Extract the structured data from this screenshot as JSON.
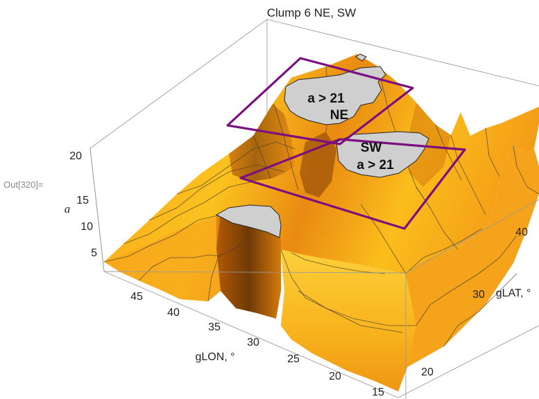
{
  "output_label": "Out[320]=",
  "chart_data": {
    "type": "surface3d",
    "title": "Clump 6 NE, SW",
    "x_axis": {
      "label": "gLON, °",
      "ticks": [
        "45",
        "40",
        "35",
        "30",
        "25",
        "20",
        "15"
      ],
      "range": [
        13,
        49
      ]
    },
    "y_axis": {
      "label": "gLAT, °",
      "ticks": [
        "20",
        "30",
        "40"
      ],
      "range": [
        14,
        47
      ]
    },
    "z_axis": {
      "label": "a",
      "ticks": [
        "5",
        "10",
        "15",
        "20"
      ],
      "range": [
        3,
        21
      ]
    },
    "plot_range_clip": 21,
    "surface_color": "orange",
    "regions": [
      {
        "name": "NE",
        "label_line1": "a > 21",
        "label_line2": "NE",
        "criterion": "a > 21",
        "color": "#7b0f80"
      },
      {
        "name": "SW",
        "label_line1": "SW",
        "label_line2": "a > 21",
        "criterion": "a > 21",
        "color": "#7b0f80"
      }
    ]
  }
}
